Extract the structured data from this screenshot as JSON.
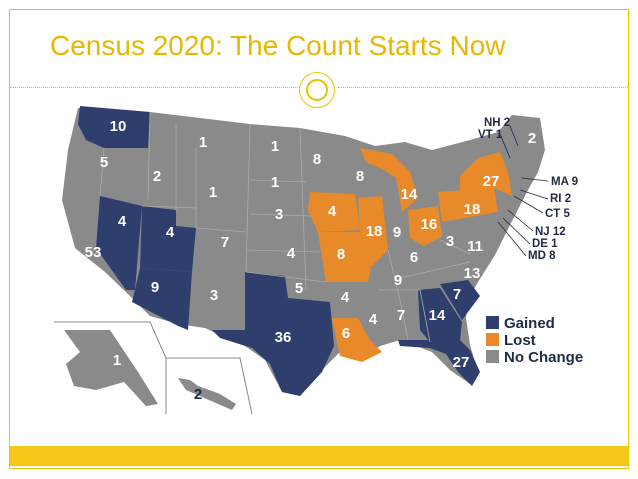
{
  "title": "Census 2020: The Count Starts Now",
  "colors": {
    "gained": "#2e3f6e",
    "lost": "#e88a2a",
    "no_change": "#8a8a8a",
    "accent": "#e8c300"
  },
  "legend": [
    {
      "key": "gained",
      "label": "Gained"
    },
    {
      "key": "lost",
      "label": "Lost"
    },
    {
      "key": "no_change",
      "label": "No Change"
    }
  ],
  "states": {
    "WA": {
      "seats": "10",
      "status": "gained"
    },
    "OR": {
      "seats": "5",
      "status": "no_change"
    },
    "CA": {
      "seats": "53",
      "status": "no_change"
    },
    "NV": {
      "seats": "4",
      "status": "gained"
    },
    "ID": {
      "seats": "2",
      "status": "no_change"
    },
    "MT": {
      "seats": "1",
      "status": "no_change"
    },
    "WY": {
      "seats": "1",
      "status": "no_change"
    },
    "UT": {
      "seats": "4",
      "status": "gained"
    },
    "AZ": {
      "seats": "9",
      "status": "gained"
    },
    "CO": {
      "seats": "7",
      "status": "no_change"
    },
    "NM": {
      "seats": "3",
      "status": "no_change"
    },
    "ND": {
      "seats": "1",
      "status": "no_change"
    },
    "SD": {
      "seats": "1",
      "status": "no_change"
    },
    "NE": {
      "seats": "3",
      "status": "no_change"
    },
    "KS": {
      "seats": "4",
      "status": "no_change"
    },
    "OK": {
      "seats": "5",
      "status": "no_change"
    },
    "TX": {
      "seats": "36",
      "status": "gained"
    },
    "MN": {
      "seats": "8",
      "status": "no_change"
    },
    "IA": {
      "seats": "4",
      "status": "lost"
    },
    "MO": {
      "seats": "8",
      "status": "lost"
    },
    "AR": {
      "seats": "4",
      "status": "no_change"
    },
    "LA": {
      "seats": "6",
      "status": "lost"
    },
    "WI": {
      "seats": "8",
      "status": "no_change"
    },
    "IL": {
      "seats": "18",
      "status": "lost"
    },
    "MI": {
      "seats": "14",
      "status": "lost"
    },
    "IN": {
      "seats": "9",
      "status": "no_change"
    },
    "OH": {
      "seats": "16",
      "status": "lost"
    },
    "KY": {
      "seats": "6",
      "status": "no_change"
    },
    "TN": {
      "seats": "9",
      "status": "no_change"
    },
    "MS": {
      "seats": "4",
      "status": "no_change"
    },
    "AL": {
      "seats": "7",
      "status": "no_change"
    },
    "GA": {
      "seats": "14",
      "status": "gained"
    },
    "FL": {
      "seats": "27",
      "status": "gained"
    },
    "SC": {
      "seats": "7",
      "status": "gained"
    },
    "NC": {
      "seats": "13",
      "status": "no_change"
    },
    "VA": {
      "seats": "11",
      "status": "no_change"
    },
    "WV": {
      "seats": "3",
      "status": "no_change"
    },
    "PA": {
      "seats": "18",
      "status": "lost"
    },
    "NY": {
      "seats": "27",
      "status": "lost"
    },
    "ME": {
      "seats": "2",
      "status": "no_change"
    },
    "AK": {
      "seats": "1",
      "status": "no_change"
    },
    "HI": {
      "seats": "2",
      "status": "no_change"
    }
  },
  "callouts": {
    "nh": "NH 2",
    "vt": "VT 1",
    "ma": "MA 9",
    "ri": "RI 2",
    "ct": "CT 5",
    "nj": "NJ 12",
    "de": "DE 1",
    "md": "MD 8"
  }
}
